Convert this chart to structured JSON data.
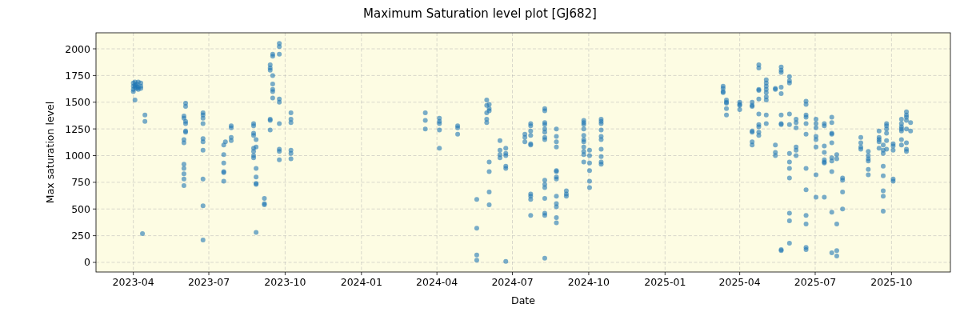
{
  "chart_data": {
    "type": "scatter",
    "title": "Maximum Saturation level plot [GJ682]",
    "xlabel": "Date",
    "ylabel": "Max saturation level",
    "xlim": [
      "2023-02-15",
      "2025-12-11"
    ],
    "ylim": [
      -90,
      2150
    ],
    "xticks": [
      "2023-04",
      "2023-07",
      "2023-10",
      "2024-01",
      "2024-04",
      "2024-07",
      "2024-10",
      "2025-01",
      "2025-04",
      "2025-07",
      "2025-10"
    ],
    "yticks": [
      0,
      250,
      500,
      750,
      1000,
      1250,
      1500,
      1750,
      2000
    ],
    "grid": true,
    "marker": "circle",
    "series": [
      {
        "color": "#1f77b4",
        "x": [
          "2023-04-01",
          "2023-04-01",
          "2023-04-01",
          "2023-04-01",
          "2023-04-03",
          "2023-04-03",
          "2023-04-03",
          "2023-04-03",
          "2023-04-05",
          "2023-04-05",
          "2023-04-05",
          "2023-04-07",
          "2023-04-07",
          "2023-04-07",
          "2023-04-10",
          "2023-04-10",
          "2023-04-10",
          "2023-04-12",
          "2023-04-15",
          "2023-04-15",
          "2023-06-01",
          "2023-06-01",
          "2023-06-01",
          "2023-06-01",
          "2023-06-01",
          "2023-06-01",
          "2023-06-01",
          "2023-06-01",
          "2023-06-01",
          "2023-06-03",
          "2023-06-03",
          "2023-06-03",
          "2023-06-03",
          "2023-06-03",
          "2023-06-03",
          "2023-06-24",
          "2023-06-24",
          "2023-06-24",
          "2023-06-24",
          "2023-06-24",
          "2023-06-24",
          "2023-06-24",
          "2023-06-24",
          "2023-06-24",
          "2023-06-24",
          "2023-07-19",
          "2023-07-19",
          "2023-07-19",
          "2023-07-19",
          "2023-07-19",
          "2023-07-19",
          "2023-07-21",
          "2023-07-28",
          "2023-07-28",
          "2023-07-28",
          "2023-07-28",
          "2023-08-24",
          "2023-08-24",
          "2023-08-24",
          "2023-08-24",
          "2023-08-24",
          "2023-08-24",
          "2023-08-24",
          "2023-08-24",
          "2023-08-27",
          "2023-08-27",
          "2023-08-27",
          "2023-08-27",
          "2023-08-27",
          "2023-08-27",
          "2023-08-27",
          "2023-09-06",
          "2023-09-06",
          "2023-09-06",
          "2023-09-13",
          "2023-09-13",
          "2023-09-13",
          "2023-09-13",
          "2023-09-13",
          "2023-09-13",
          "2023-09-16",
          "2023-09-16",
          "2023-09-16",
          "2023-09-16",
          "2023-09-16",
          "2023-09-16",
          "2023-09-16",
          "2023-09-24",
          "2023-09-24",
          "2023-09-24",
          "2023-09-24",
          "2023-09-24",
          "2023-09-24",
          "2023-09-24",
          "2023-09-24",
          "2023-09-24",
          "2023-10-08",
          "2023-10-08",
          "2023-10-08",
          "2023-10-08",
          "2023-10-08",
          "2023-10-08",
          "2024-03-18",
          "2024-03-18",
          "2024-03-18",
          "2024-04-04",
          "2024-04-04",
          "2024-04-04",
          "2024-04-04",
          "2024-04-04",
          "2024-04-26",
          "2024-04-26",
          "2024-04-26",
          "2024-05-19",
          "2024-05-19",
          "2024-05-19",
          "2024-05-19",
          "2024-05-31",
          "2024-05-31",
          "2024-05-31",
          "2024-05-31",
          "2024-05-31",
          "2024-06-03",
          "2024-06-03",
          "2024-06-03",
          "2024-06-03",
          "2024-06-03",
          "2024-06-03",
          "2024-06-03",
          "2024-06-16",
          "2024-06-16",
          "2024-06-16",
          "2024-06-16",
          "2024-06-23",
          "2024-06-23",
          "2024-06-23",
          "2024-06-23",
          "2024-06-23",
          "2024-06-23",
          "2024-07-16",
          "2024-07-16",
          "2024-07-16",
          "2024-07-23",
          "2024-07-23",
          "2024-07-23",
          "2024-07-23",
          "2024-07-23",
          "2024-07-23",
          "2024-07-23",
          "2024-07-23",
          "2024-07-23",
          "2024-07-23",
          "2024-08-09",
          "2024-08-09",
          "2024-08-09",
          "2024-08-09",
          "2024-08-09",
          "2024-08-09",
          "2024-08-09",
          "2024-08-09",
          "2024-08-09",
          "2024-08-09",
          "2024-08-09",
          "2024-08-09",
          "2024-08-09",
          "2024-08-09",
          "2024-08-09",
          "2024-08-23",
          "2024-08-23",
          "2024-08-23",
          "2024-08-23",
          "2024-08-23",
          "2024-08-23",
          "2024-08-23",
          "2024-08-23",
          "2024-08-23",
          "2024-08-23",
          "2024-08-23",
          "2024-08-23",
          "2024-08-23",
          "2024-09-04",
          "2024-09-04",
          "2024-09-04",
          "2024-09-25",
          "2024-09-25",
          "2024-09-25",
          "2024-09-25",
          "2024-09-25",
          "2024-09-25",
          "2024-09-25",
          "2024-09-25",
          "2024-09-25",
          "2024-09-25",
          "2024-09-25",
          "2024-10-02",
          "2024-10-02",
          "2024-10-02",
          "2024-10-02",
          "2024-10-02",
          "2024-10-02",
          "2024-10-16",
          "2024-10-16",
          "2024-10-16",
          "2024-10-16",
          "2024-10-16",
          "2024-10-16",
          "2024-10-16",
          "2024-10-16",
          "2024-10-16",
          "2024-10-16",
          "2025-03-12",
          "2025-03-12",
          "2025-03-12",
          "2025-03-12",
          "2025-03-16",
          "2025-03-16",
          "2025-03-16",
          "2025-03-16",
          "2025-03-16",
          "2025-04-01",
          "2025-04-01",
          "2025-04-01",
          "2025-04-01",
          "2025-04-16",
          "2025-04-16",
          "2025-04-16",
          "2025-04-16",
          "2025-04-16",
          "2025-04-16",
          "2025-04-16",
          "2025-04-24",
          "2025-04-24",
          "2025-04-24",
          "2025-04-24",
          "2025-04-24",
          "2025-04-24",
          "2025-04-24",
          "2025-04-24",
          "2025-04-24",
          "2025-04-24",
          "2025-05-03",
          "2025-05-03",
          "2025-05-03",
          "2025-05-03",
          "2025-05-03",
          "2025-05-03",
          "2025-05-03",
          "2025-05-03",
          "2025-05-03",
          "2025-05-14",
          "2025-05-14",
          "2025-05-14",
          "2025-05-14",
          "2025-05-14",
          "2025-05-21",
          "2025-05-21",
          "2025-05-21",
          "2025-05-21",
          "2025-05-21",
          "2025-05-21",
          "2025-05-21",
          "2025-05-21",
          "2025-05-21",
          "2025-05-21",
          "2025-05-31",
          "2025-05-31",
          "2025-05-31",
          "2025-05-31",
          "2025-05-31",
          "2025-05-31",
          "2025-05-31",
          "2025-05-31",
          "2025-05-31",
          "2025-05-31",
          "2025-05-31",
          "2025-05-31",
          "2025-06-08",
          "2025-06-08",
          "2025-06-08",
          "2025-06-08",
          "2025-06-08",
          "2025-06-08",
          "2025-06-20",
          "2025-06-20",
          "2025-06-20",
          "2025-06-20",
          "2025-06-20",
          "2025-06-20",
          "2025-06-20",
          "2025-06-20",
          "2025-06-20",
          "2025-06-20",
          "2025-06-20",
          "2025-06-20",
          "2025-07-02",
          "2025-07-02",
          "2025-07-02",
          "2025-07-02",
          "2025-07-02",
          "2025-07-02",
          "2025-07-02",
          "2025-07-02",
          "2025-07-12",
          "2025-07-12",
          "2025-07-12",
          "2025-07-12",
          "2025-07-12",
          "2025-07-12",
          "2025-07-12",
          "2025-07-12",
          "2025-07-21",
          "2025-07-21",
          "2025-07-21",
          "2025-07-21",
          "2025-07-21",
          "2025-07-21",
          "2025-07-21",
          "2025-07-21",
          "2025-07-21",
          "2025-07-21",
          "2025-07-27",
          "2025-07-27",
          "2025-07-27",
          "2025-07-27",
          "2025-07-27",
          "2025-08-03",
          "2025-08-03",
          "2025-08-03",
          "2025-08-03",
          "2025-08-25",
          "2025-08-25",
          "2025-08-25",
          "2025-08-25",
          "2025-09-03",
          "2025-09-03",
          "2025-09-03",
          "2025-09-03",
          "2025-09-03",
          "2025-09-03",
          "2025-09-16",
          "2025-09-16",
          "2025-09-16",
          "2025-09-16",
          "2025-09-16",
          "2025-09-21",
          "2025-09-21",
          "2025-09-21",
          "2025-09-21",
          "2025-09-21",
          "2025-09-21",
          "2025-09-21",
          "2025-09-21",
          "2025-09-25",
          "2025-09-25",
          "2025-09-25",
          "2025-09-25",
          "2025-09-25",
          "2025-09-25",
          "2025-10-03",
          "2025-10-03",
          "2025-10-03",
          "2025-10-03",
          "2025-10-03",
          "2025-10-13",
          "2025-10-13",
          "2025-10-13",
          "2025-10-13",
          "2025-10-13",
          "2025-10-13",
          "2025-10-13",
          "2025-10-19",
          "2025-10-19",
          "2025-10-19",
          "2025-10-19",
          "2025-10-19",
          "2025-10-19",
          "2025-10-19",
          "2025-10-19",
          "2025-10-24",
          "2025-10-24"
        ],
        "values": [
          1600,
          1620,
          1650,
          1680,
          1520,
          1640,
          1690,
          1660,
          1630,
          1670,
          1650,
          1690,
          1640,
          1620,
          1680,
          1650,
          1630,
          270,
          1380,
          1320,
          1370,
          1350,
          1150,
          1120,
          920,
          880,
          830,
          780,
          720,
          1490,
          1460,
          1320,
          1300,
          1230,
          1220,
          1400,
          1380,
          1350,
          1300,
          1160,
          1130,
          1050,
          780,
          530,
          210,
          1100,
          1010,
          930,
          850,
          840,
          760,
          1130,
          1280,
          1260,
          1170,
          1140,
          1300,
          1280,
          1210,
          1190,
          1070,
          1040,
          1000,
          980,
          1150,
          1080,
          880,
          800,
          740,
          730,
          280,
          600,
          550,
          540,
          1850,
          1820,
          1800,
          1340,
          1330,
          1240,
          1950,
          1930,
          1750,
          1670,
          1620,
          1600,
          1540,
          2050,
          2020,
          1950,
          1530,
          1500,
          1300,
          1060,
          1040,
          960,
          1400,
          1340,
          1310,
          1050,
          1020,
          970,
          1400,
          1330,
          1250,
          1350,
          1320,
          1300,
          1240,
          1070,
          1280,
          1260,
          1200,
          590,
          320,
          70,
          20,
          1520,
          1470,
          1400,
          1340,
          1310,
          1480,
          1440,
          1420,
          940,
          850,
          660,
          540,
          1140,
          1050,
          1010,
          980,
          1070,
          1020,
          1000,
          900,
          880,
          10,
          1200,
          1170,
          1130,
          1300,
          1280,
          1230,
          1190,
          1110,
          1100,
          640,
          620,
          590,
          440,
          1440,
          1420,
          1310,
          1290,
          1250,
          1220,
          1170,
          1150,
          770,
          730,
          700,
          600,
          460,
          440,
          40,
          1250,
          1180,
          1130,
          1080,
          860,
          850,
          800,
          780,
          620,
          550,
          520,
          420,
          370,
          670,
          640,
          620,
          1330,
          1310,
          1290,
          1250,
          1190,
          1150,
          1130,
          1080,
          1040,
          1010,
          940,
          1050,
          1000,
          930,
          860,
          760,
          700,
          1340,
          1320,
          1300,
          1240,
          1180,
          1150,
          1060,
          990,
          940,
          920,
          1650,
          1630,
          1600,
          1590,
          1520,
          1500,
          1490,
          1440,
          1380,
          1500,
          1480,
          1470,
          1430,
          1500,
          1470,
          1460,
          1230,
          1220,
          1130,
          1100,
          1850,
          1820,
          1620,
          1610,
          1530,
          1390,
          1290,
          1270,
          1220,
          1190,
          1710,
          1680,
          1650,
          1620,
          1590,
          1550,
          1520,
          1380,
          1300,
          1630,
          1620,
          1100,
          1030,
          1000,
          1830,
          1800,
          1780,
          1640,
          1580,
          1380,
          1300,
          1290,
          120,
          110,
          1740,
          1700,
          1680,
          1390,
          1290,
          1020,
          940,
          880,
          790,
          460,
          390,
          180,
          1340,
          1310,
          1260,
          1080,
          1050,
          1000,
          1510,
          1480,
          1380,
          1360,
          1300,
          1200,
          880,
          680,
          440,
          360,
          140,
          120,
          1340,
          1300,
          1260,
          1180,
          1150,
          1080,
          820,
          610,
          1300,
          1280,
          1090,
          1030,
          960,
          940,
          930,
          610,
          1360,
          1310,
          1210,
          1200,
          1120,
          980,
          950,
          850,
          470,
          90,
          1010,
          970,
          360,
          110,
          60,
          790,
          770,
          660,
          500,
          1170,
          1120,
          1080,
          1060,
          1040,
          1000,
          970,
          950,
          870,
          820,
          1230,
          1170,
          1150,
          1130,
          1070,
          1100,
          1050,
          1020,
          900,
          810,
          670,
          620,
          480,
          1300,
          1280,
          1250,
          1210,
          1140,
          1060,
          1110,
          1090,
          1050,
          780,
          760,
          1340,
          1300,
          1270,
          1250,
          1230,
          1150,
          1100,
          1410,
          1380,
          1360,
          1330,
          1250,
          1120,
          1060,
          1040,
          1310,
          1230
        ]
      }
    ]
  }
}
